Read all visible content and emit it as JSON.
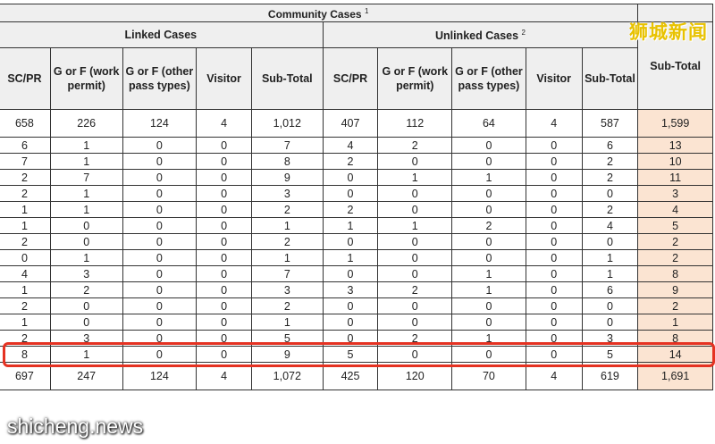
{
  "table": {
    "title": "Community Cases",
    "title_sup": "1",
    "groups": {
      "linked": "Linked Cases",
      "unlinked": "Unlinked Cases",
      "unlinked_sup": "2"
    },
    "columns_linked": [
      "SC/PR",
      "G or F (work permit)",
      "G or F (other pass types)",
      "Visitor",
      "Sub-Total"
    ],
    "columns_unlinked": [
      "SC/PR",
      "G or F (work permit)",
      "G or F (other pass types)",
      "Visitor",
      "Sub-Total"
    ],
    "subtotal_header": "Sub-Total",
    "top_totals": [
      "658",
      "226",
      "124",
      "4",
      "1,012",
      "407",
      "112",
      "64",
      "4",
      "587",
      "1,599"
    ],
    "rows": [
      [
        "6",
        "1",
        "0",
        "0",
        "7",
        "4",
        "2",
        "0",
        "0",
        "6",
        "13"
      ],
      [
        "7",
        "1",
        "0",
        "0",
        "8",
        "2",
        "0",
        "0",
        "0",
        "2",
        "10"
      ],
      [
        "2",
        "7",
        "0",
        "0",
        "9",
        "0",
        "1",
        "1",
        "0",
        "2",
        "11"
      ],
      [
        "2",
        "1",
        "0",
        "0",
        "3",
        "0",
        "0",
        "0",
        "0",
        "0",
        "3"
      ],
      [
        "1",
        "1",
        "0",
        "0",
        "2",
        "2",
        "0",
        "0",
        "0",
        "2",
        "4"
      ],
      [
        "1",
        "0",
        "0",
        "0",
        "1",
        "1",
        "1",
        "2",
        "0",
        "4",
        "5"
      ],
      [
        "2",
        "0",
        "0",
        "0",
        "2",
        "0",
        "0",
        "0",
        "0",
        "0",
        "2"
      ],
      [
        "0",
        "1",
        "0",
        "0",
        "1",
        "1",
        "0",
        "0",
        "0",
        "1",
        "2"
      ],
      [
        "4",
        "3",
        "0",
        "0",
        "7",
        "0",
        "0",
        "1",
        "0",
        "1",
        "8"
      ],
      [
        "1",
        "2",
        "0",
        "0",
        "3",
        "3",
        "2",
        "1",
        "0",
        "6",
        "9"
      ],
      [
        "2",
        "0",
        "0",
        "0",
        "2",
        "0",
        "0",
        "0",
        "0",
        "0",
        "2"
      ],
      [
        "1",
        "0",
        "0",
        "0",
        "1",
        "0",
        "0",
        "0",
        "0",
        "0",
        "1"
      ],
      [
        "2",
        "3",
        "0",
        "0",
        "5",
        "0",
        "2",
        "1",
        "0",
        "3",
        "8"
      ],
      [
        "8",
        "1",
        "0",
        "0",
        "9",
        "5",
        "0",
        "0",
        "0",
        "5",
        "14"
      ]
    ],
    "bottom_totals": [
      "697",
      "247",
      "124",
      "4",
      "1,072",
      "425",
      "120",
      "70",
      "4",
      "619",
      "1,691"
    ],
    "highlighted_row_index": 13
  },
  "watermarks": {
    "brand_cn": "狮城新闻",
    "site": "shicheng.news"
  },
  "colors": {
    "subtotal_fill": "#fbe4d2",
    "header_fill": "#efefef",
    "highlight": "#e53222",
    "watermark_cn": "#e8c200"
  }
}
